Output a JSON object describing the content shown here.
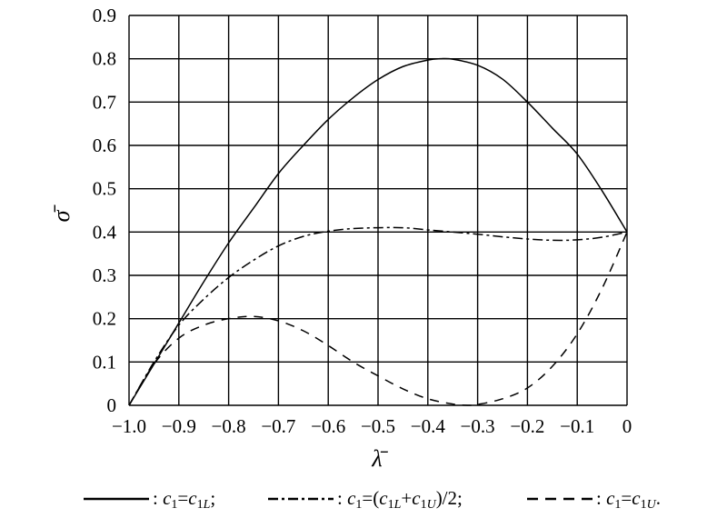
{
  "chart_data": {
    "type": "line",
    "xlabel": "λ̄",
    "ylabel": "σ̄",
    "xlim": [
      -1.0,
      0
    ],
    "ylim": [
      0,
      0.9
    ],
    "x_ticks": [
      -1.0,
      -0.9,
      -0.8,
      -0.7,
      -0.6,
      -0.5,
      -0.4,
      -0.3,
      -0.2,
      -0.1,
      0
    ],
    "x_tick_labels": [
      "−1.0",
      "−0.9",
      "−0.8",
      "−0.7",
      "−0.6",
      "−0.5",
      "−0.4",
      "−0.3",
      "−0.2",
      "−0.1",
      "0"
    ],
    "y_ticks": [
      0,
      0.1,
      0.2,
      0.3,
      0.4,
      0.5,
      0.6,
      0.7,
      0.8,
      0.9
    ],
    "y_tick_labels": [
      "0",
      "0.1",
      "0.2",
      "0.3",
      "0.4",
      "0.5",
      "0.6",
      "0.7",
      "0.8",
      "0.9"
    ],
    "grid": true,
    "legend_position": "bottom",
    "series": [
      {
        "name": ": c1=c1L;",
        "style": "solid",
        "color": "#000000",
        "x": [
          -1.0,
          -0.95,
          -0.9,
          -0.85,
          -0.8,
          -0.75,
          -0.7,
          -0.65,
          -0.6,
          -0.55,
          -0.5,
          -0.45,
          -0.4,
          -0.375,
          -0.35,
          -0.3,
          -0.25,
          -0.2,
          -0.15,
          -0.1,
          -0.05,
          0
        ],
        "y": [
          0,
          0.095,
          0.19,
          0.285,
          0.375,
          0.455,
          0.535,
          0.6,
          0.66,
          0.71,
          0.752,
          0.782,
          0.797,
          0.8,
          0.799,
          0.785,
          0.753,
          0.7,
          0.64,
          0.58,
          0.495,
          0.4
        ]
      },
      {
        "name": ": c1=(c1L+c1U)/2;",
        "style": "dashdot",
        "color": "#000000",
        "x": [
          -1.0,
          -0.95,
          -0.9,
          -0.85,
          -0.8,
          -0.75,
          -0.7,
          -0.65,
          -0.6,
          -0.55,
          -0.5,
          -0.45,
          -0.4,
          -0.35,
          -0.3,
          -0.25,
          -0.2,
          -0.15,
          -0.1,
          -0.05,
          0
        ],
        "y": [
          0,
          0.1,
          0.185,
          0.245,
          0.295,
          0.335,
          0.368,
          0.39,
          0.402,
          0.408,
          0.41,
          0.41,
          0.405,
          0.4,
          0.395,
          0.389,
          0.384,
          0.381,
          0.382,
          0.388,
          0.4
        ]
      },
      {
        "name": ": c1=c1U.",
        "style": "dashed",
        "color": "#000000",
        "x": [
          -1.0,
          -0.95,
          -0.9,
          -0.85,
          -0.8,
          -0.75,
          -0.7,
          -0.65,
          -0.6,
          -0.55,
          -0.5,
          -0.45,
          -0.4,
          -0.35,
          -0.32,
          -0.3,
          -0.25,
          -0.2,
          -0.15,
          -0.1,
          -0.05,
          0
        ],
        "y": [
          0,
          0.095,
          0.155,
          0.185,
          0.2,
          0.205,
          0.195,
          0.172,
          0.138,
          0.1,
          0.068,
          0.038,
          0.015,
          0.003,
          0,
          0.002,
          0.015,
          0.04,
          0.09,
          0.165,
          0.27,
          0.4
        ]
      }
    ]
  },
  "legend": {
    "items": [
      {
        "style": "solid",
        "pre": ": ",
        "body": "c1=c1L",
        "post": ";"
      },
      {
        "style": "dashdot",
        "pre": ": ",
        "body": "c1=(c1L+c1U)/2",
        "post": ";"
      },
      {
        "style": "dashed",
        "pre": ": ",
        "body": "c1=c1U",
        "post": "."
      }
    ]
  }
}
